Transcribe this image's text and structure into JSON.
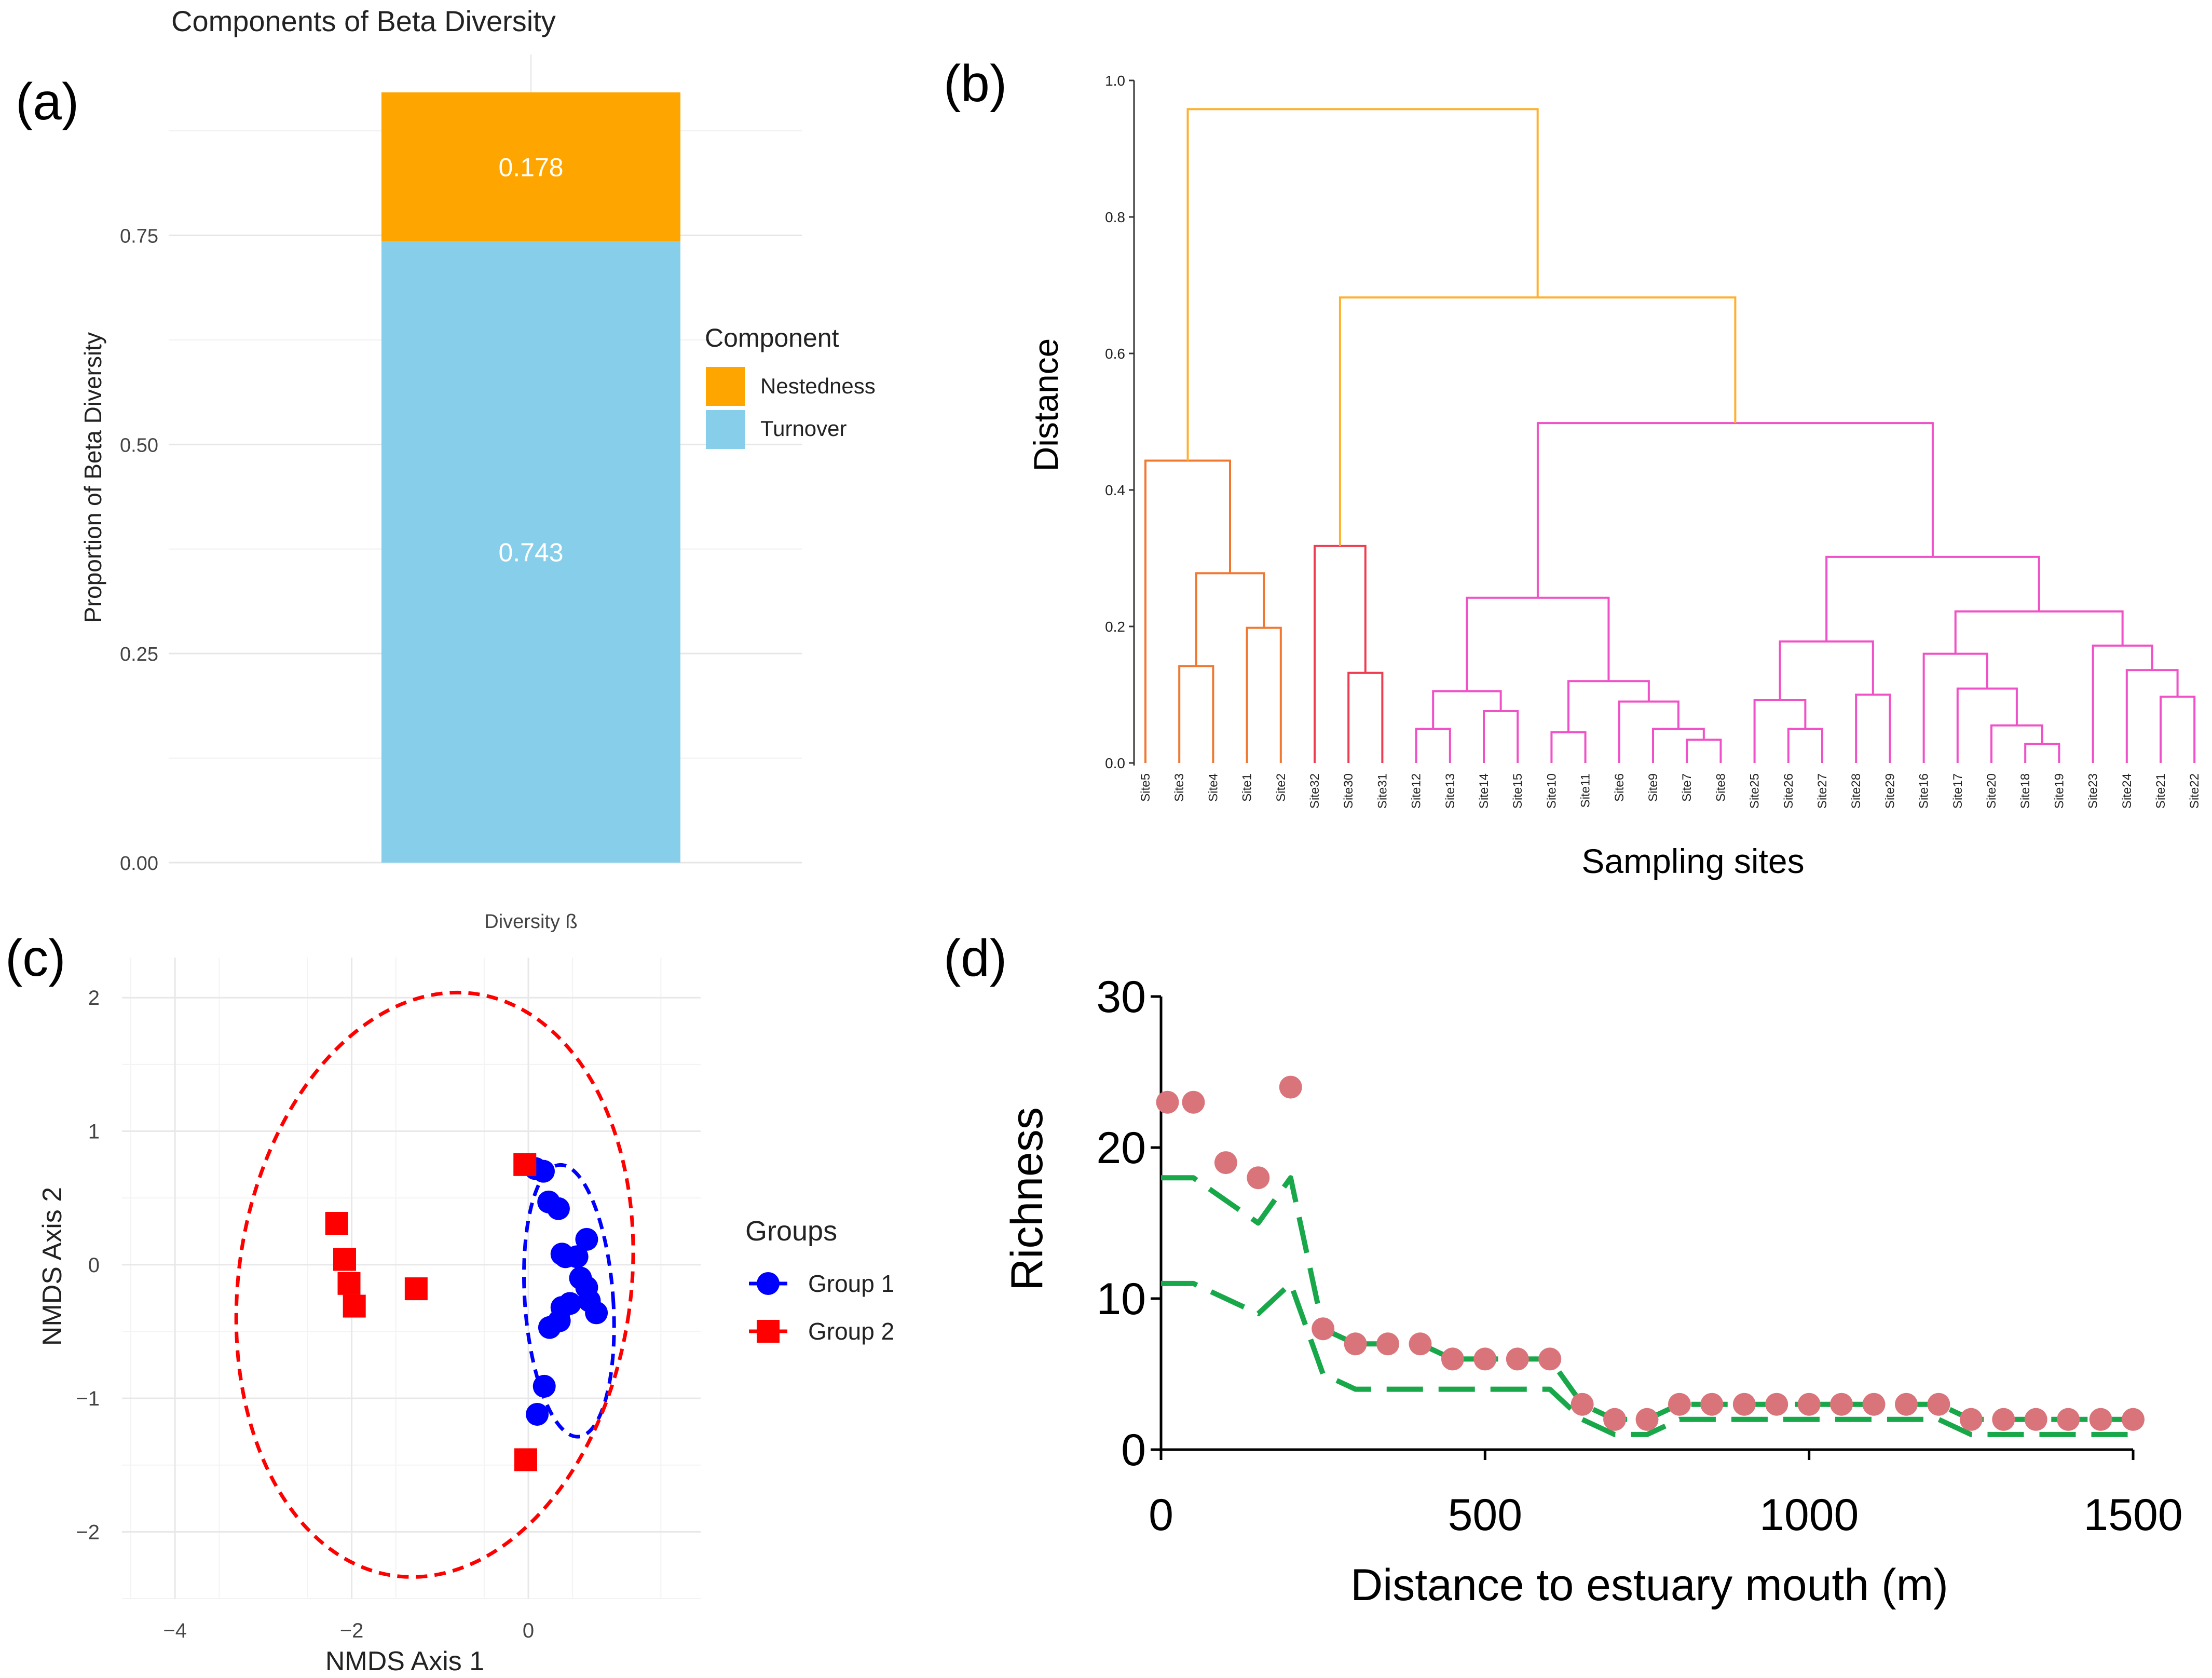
{
  "panel_labels": {
    "a": "(a)",
    "b": "(b)",
    "c": "(c)",
    "d": "(d)"
  },
  "colors": {
    "nestedness": "#FFA500",
    "turnover": "#87CEEB",
    "dendro_orange": "#FFB02E",
    "dendro_dark_orange": "#F07830",
    "dendro_red": "#F03C50",
    "dendro_pink": "#F050C8",
    "group1": "#0000FF",
    "group2": "#FF0000",
    "richness_points": "#D9757A",
    "richness_lines": "#18A84A"
  },
  "chart_data": [
    {
      "id": "a",
      "type": "bar",
      "title": "Components of Beta Diversity",
      "xlabel": "",
      "ylabel": "Proportion of Beta Diversity",
      "categories": [
        "Diversity ß"
      ],
      "ylim": [
        0,
        0.921
      ],
      "yticks": [
        "0.00",
        "0.25",
        "0.50",
        "0.75"
      ],
      "ytick_values": [
        0,
        0.25,
        0.5,
        0.75
      ],
      "stacked": true,
      "series": [
        {
          "name": "Turnover",
          "values": [
            0.743
          ],
          "label": "0.743"
        },
        {
          "name": "Nestedness",
          "values": [
            0.178
          ],
          "label": "0.178"
        }
      ],
      "legend": {
        "title": "Component",
        "entries": [
          "Nestedness",
          "Turnover"
        ],
        "position": "right"
      }
    },
    {
      "id": "b",
      "type": "dendrogram",
      "xlabel": "Sampling sites",
      "ylabel": "Distance",
      "ylim": [
        0,
        1.0
      ],
      "yticks": [
        "0.0",
        "0.2",
        "0.4",
        "0.6",
        "0.8",
        "1.0"
      ],
      "ytick_values": [
        0,
        0.2,
        0.4,
        0.6,
        0.8,
        1.0
      ],
      "leaves": [
        "Site5",
        "Site3",
        "Site4",
        "Site1",
        "Site2",
        "Site32",
        "Site30",
        "Site31",
        "Site12",
        "Site13",
        "Site14",
        "Site15",
        "Site10",
        "Site11",
        "Site6",
        "Site9",
        "Site7",
        "Site8",
        "Site25",
        "Site26",
        "Site27",
        "Site28",
        "Site29",
        "Site16",
        "Site17",
        "Site20",
        "Site18",
        "Site19",
        "Site23",
        "Site24",
        "Site21",
        "Site22"
      ],
      "merges": [
        {
          "l": "Site3",
          "r": "Site4",
          "h": 0.142,
          "c": "dendro_dark_orange",
          "id": "n1"
        },
        {
          "l": "Site1",
          "r": "Site2",
          "h": 0.198,
          "c": "dendro_dark_orange",
          "id": "n2"
        },
        {
          "l": "n1",
          "r": "n2",
          "h": 0.278,
          "c": "dendro_dark_orange",
          "id": "n3"
        },
        {
          "l": "Site5",
          "r": "n3",
          "h": 0.443,
          "c": "dendro_dark_orange",
          "id": "n4"
        },
        {
          "l": "Site30",
          "r": "Site31",
          "h": 0.132,
          "c": "dendro_red",
          "id": "n5"
        },
        {
          "l": "Site32",
          "r": "n5",
          "h": 0.318,
          "c": "dendro_red",
          "id": "n6"
        },
        {
          "l": "Site12",
          "r": "Site13",
          "h": 0.05,
          "c": "dendro_pink",
          "id": "n7"
        },
        {
          "l": "Site14",
          "r": "Site15",
          "h": 0.076,
          "c": "dendro_pink",
          "id": "n8"
        },
        {
          "l": "n7",
          "r": "n8",
          "h": 0.105,
          "c": "dendro_pink",
          "id": "n9"
        },
        {
          "l": "Site10",
          "r": "Site11",
          "h": 0.045,
          "c": "dendro_pink",
          "id": "n10"
        },
        {
          "l": "Site7",
          "r": "Site8",
          "h": 0.034,
          "c": "dendro_pink",
          "id": "n11"
        },
        {
          "l": "Site9",
          "r": "n11",
          "h": 0.05,
          "c": "dendro_pink",
          "id": "n12"
        },
        {
          "l": "Site6",
          "r": "n12",
          "h": 0.09,
          "c": "dendro_pink",
          "id": "n13"
        },
        {
          "l": "n10",
          "r": "n13",
          "h": 0.12,
          "c": "dendro_pink",
          "id": "n14"
        },
        {
          "l": "n9",
          "r": "n14",
          "h": 0.242,
          "c": "dendro_pink",
          "id": "n15"
        },
        {
          "l": "Site26",
          "r": "Site27",
          "h": 0.05,
          "c": "dendro_pink",
          "id": "n16"
        },
        {
          "l": "Site25",
          "r": "n16",
          "h": 0.092,
          "c": "dendro_pink",
          "id": "n17"
        },
        {
          "l": "Site28",
          "r": "Site29",
          "h": 0.1,
          "c": "dendro_pink",
          "id": "n18"
        },
        {
          "l": "n17",
          "r": "n18",
          "h": 0.178,
          "c": "dendro_pink",
          "id": "n19"
        },
        {
          "l": "Site18",
          "r": "Site19",
          "h": 0.028,
          "c": "dendro_pink",
          "id": "n20"
        },
        {
          "l": "Site20",
          "r": "n20",
          "h": 0.055,
          "c": "dendro_pink",
          "id": "n21"
        },
        {
          "l": "Site17",
          "r": "n21",
          "h": 0.109,
          "c": "dendro_pink",
          "id": "n22"
        },
        {
          "l": "Site16",
          "r": "n22",
          "h": 0.16,
          "c": "dendro_pink",
          "id": "n23"
        },
        {
          "l": "Site21",
          "r": "Site22",
          "h": 0.097,
          "c": "dendro_pink",
          "id": "n24"
        },
        {
          "l": "Site24",
          "r": "n24",
          "h": 0.136,
          "c": "dendro_pink",
          "id": "n25"
        },
        {
          "l": "Site23",
          "r": "n25",
          "h": 0.172,
          "c": "dendro_pink",
          "id": "n26"
        },
        {
          "l": "n23",
          "r": "n26",
          "h": 0.222,
          "c": "dendro_pink",
          "id": "n27"
        },
        {
          "l": "n19",
          "r": "n27",
          "h": 0.302,
          "c": "dendro_pink",
          "id": "n28"
        },
        {
          "l": "n15",
          "r": "n28",
          "h": 0.498,
          "c": "dendro_pink",
          "id": "n29"
        },
        {
          "l": "n6",
          "r": "n29",
          "h": 0.682,
          "c": "dendro_orange",
          "id": "n30"
        },
        {
          "l": "n4",
          "r": "n30",
          "h": 0.958,
          "c": "dendro_orange",
          "id": "n31"
        }
      ]
    },
    {
      "id": "c",
      "type": "scatter",
      "xlabel": "NMDS Axis 1",
      "ylabel": "NMDS Axis 2",
      "xlim": [
        -4.6,
        1.95
      ],
      "ylim": [
        -2.5,
        2.3
      ],
      "xticks": [
        "−4",
        "−2",
        "0"
      ],
      "xtick_values": [
        -4,
        -2,
        0
      ],
      "yticks": [
        "−2",
        "−1",
        "0",
        "1",
        "2"
      ],
      "ytick_values": [
        -2,
        -1,
        0,
        1,
        2
      ],
      "legend": {
        "title": "Groups",
        "position": "right"
      },
      "series": [
        {
          "name": "Group 1",
          "marker": "circle",
          "x": [
            0.08,
            0.17,
            0.23,
            0.34,
            0.38,
            0.42,
            0.66,
            0.55,
            0.59,
            0.47,
            0.77,
            0.66,
            0.69,
            0.38,
            0.35,
            0.24,
            0.18,
            0.1
          ],
          "y": [
            0.72,
            0.7,
            0.47,
            0.42,
            0.08,
            0.06,
            0.19,
            0.06,
            -0.1,
            -0.29,
            -0.36,
            -0.17,
            -0.27,
            -0.32,
            -0.42,
            -0.47,
            -0.91,
            -1.12
          ],
          "ellipse": {
            "cx": 0.46,
            "cy": -0.27,
            "rx": 0.5,
            "ry": 1.02,
            "rot_deg": -4
          }
        },
        {
          "name": "Group 2",
          "marker": "square",
          "x": [
            -2.17,
            -2.08,
            -2.03,
            -1.97,
            -1.27,
            -0.04,
            -0.03
          ],
          "y": [
            0.31,
            0.04,
            -0.14,
            -0.31,
            -0.18,
            0.75,
            -1.46
          ],
          "ellipse": {
            "cx": -1.06,
            "cy": -0.15,
            "rx": 2.22,
            "ry": 2.2,
            "rot_deg": 8
          }
        }
      ]
    },
    {
      "id": "d",
      "type": "scatter+line",
      "xlabel": "Distance to estuary mouth (m)",
      "ylabel": "Richness",
      "xlim": [
        0,
        1500
      ],
      "ylim": [
        0,
        30
      ],
      "xticks": [
        "0",
        "500",
        "1000",
        "1500"
      ],
      "xtick_values": [
        0,
        500,
        1000,
        1500
      ],
      "yticks": [
        "0",
        "10",
        "20",
        "30"
      ],
      "ytick_values": [
        0,
        10,
        20,
        30
      ],
      "points": {
        "x": [
          10,
          50,
          100,
          150,
          200,
          250,
          300,
          350,
          400,
          450,
          500,
          550,
          600,
          650,
          700,
          750,
          800,
          850,
          900,
          950,
          1000,
          1050,
          1100,
          1150,
          1200,
          1250,
          1300,
          1350,
          1400,
          1450,
          1500
        ],
        "y": [
          23,
          23,
          19,
          18,
          24,
          8,
          7,
          7,
          7,
          6,
          6,
          6,
          6,
          3,
          2,
          2,
          3,
          3,
          3,
          3,
          3,
          3,
          3,
          3,
          3,
          2,
          2,
          2,
          2,
          2,
          2
        ]
      },
      "lines": [
        {
          "name": "upper",
          "x": [
            0,
            50,
            150,
            200,
            250,
            300,
            400,
            450,
            600,
            650,
            700,
            750,
            800,
            1200,
            1250,
            1500
          ],
          "y": [
            18,
            18,
            15,
            18,
            8,
            7,
            7,
            6,
            6,
            3,
            2,
            2,
            3,
            3,
            2,
            2
          ]
        },
        {
          "name": "lower",
          "x": [
            0,
            50,
            150,
            200,
            250,
            300,
            600,
            650,
            700,
            750,
            800,
            1200,
            1250,
            1500
          ],
          "y": [
            11,
            11,
            9,
            11,
            5,
            4,
            4,
            2,
            1,
            1,
            2,
            2,
            1,
            1
          ]
        }
      ]
    }
  ]
}
